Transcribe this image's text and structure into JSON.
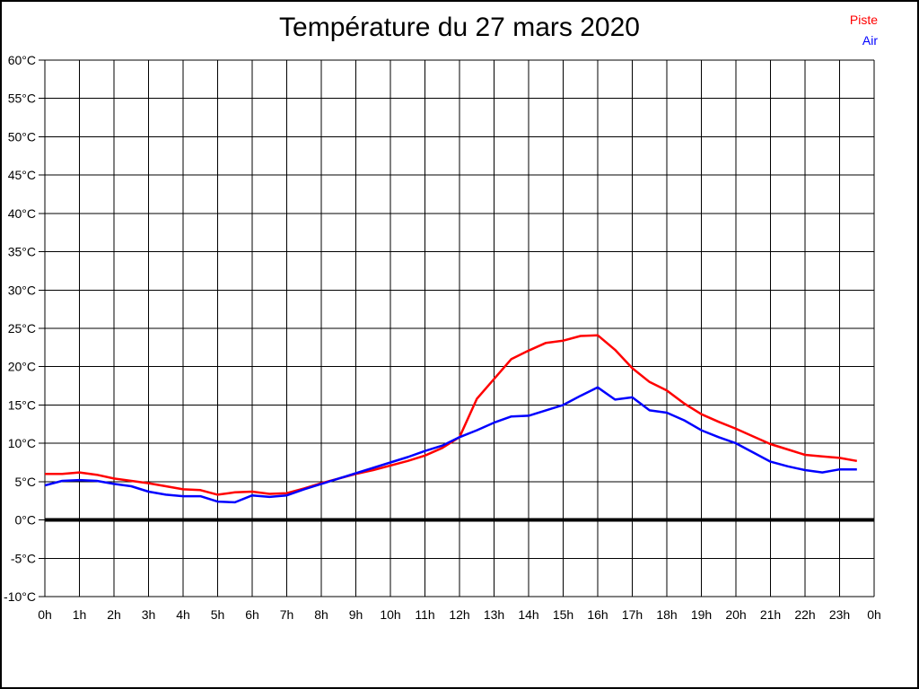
{
  "title": "Température du 27 mars 2020",
  "legend": {
    "items": [
      {
        "label": "Piste",
        "color": "#ff0000"
      },
      {
        "label": "Air",
        "color": "#0000ff"
      }
    ]
  },
  "chart_data": {
    "type": "line",
    "title": "Température du 27 mars 2020",
    "xlabel": "",
    "ylabel": "",
    "xlim": [
      0,
      24
    ],
    "ylim": [
      -10,
      60
    ],
    "y_step": 5,
    "grid": true,
    "legend_position": "top-right",
    "zero_line_value": 0,
    "x_tick_labels": [
      "0h",
      "1h",
      "2h",
      "3h",
      "4h",
      "5h",
      "6h",
      "7h",
      "8h",
      "9h",
      "10h",
      "11h",
      "12h",
      "13h",
      "14h",
      "15h",
      "16h",
      "17h",
      "18h",
      "19h",
      "20h",
      "21h",
      "22h",
      "23h",
      "0h"
    ],
    "y_tick_labels": [
      "60°C",
      "55°C",
      "50°C",
      "45°C",
      "40°C",
      "35°C",
      "30°C",
      "25°C",
      "20°C",
      "15°C",
      "10°C",
      "5°C",
      "0°C",
      "-5°C",
      "-10°C"
    ],
    "x": [
      0,
      0.5,
      1,
      1.5,
      2,
      2.5,
      3,
      3.5,
      4,
      4.5,
      5,
      5.5,
      6,
      6.5,
      7,
      7.5,
      8,
      8.5,
      9,
      9.5,
      10,
      10.5,
      11,
      11.5,
      12,
      12.5,
      13,
      13.5,
      14,
      14.5,
      15,
      15.5,
      16,
      16.5,
      17,
      17.5,
      18,
      18.5,
      19,
      19.5,
      20,
      20.5,
      21,
      21.5,
      22,
      22.5,
      23,
      23.5
    ],
    "series": [
      {
        "name": "Piste",
        "color": "#ff0000",
        "values": [
          6.0,
          6.0,
          6.2,
          5.9,
          5.4,
          5.1,
          4.8,
          4.4,
          4.0,
          3.9,
          3.3,
          3.6,
          3.7,
          3.4,
          3.5,
          4.1,
          4.8,
          5.4,
          6.0,
          6.5,
          7.1,
          7.7,
          8.4,
          9.4,
          10.8,
          15.8,
          18.4,
          21.0,
          22.1,
          23.1,
          23.4,
          24.0,
          24.1,
          22.2,
          19.8,
          18.0,
          16.9,
          15.2,
          13.8,
          12.8,
          11.9,
          10.9,
          9.9,
          9.2,
          8.5,
          8.3,
          8.1,
          7.7
        ]
      },
      {
        "name": "Air",
        "color": "#0000ff",
        "values": [
          4.5,
          5.1,
          5.2,
          5.1,
          4.7,
          4.4,
          3.7,
          3.3,
          3.1,
          3.1,
          2.4,
          2.3,
          3.2,
          3.0,
          3.2,
          4.0,
          4.7,
          5.4,
          6.1,
          6.8,
          7.5,
          8.2,
          9.0,
          9.7,
          10.8,
          11.7,
          12.7,
          13.5,
          13.6,
          14.3,
          15.0,
          16.2,
          17.3,
          15.7,
          16.0,
          14.3,
          14.0,
          13.0,
          11.7,
          10.8,
          10.0,
          8.8,
          7.6,
          7.0,
          6.5,
          6.2,
          6.6,
          6.6
        ]
      }
    ]
  }
}
